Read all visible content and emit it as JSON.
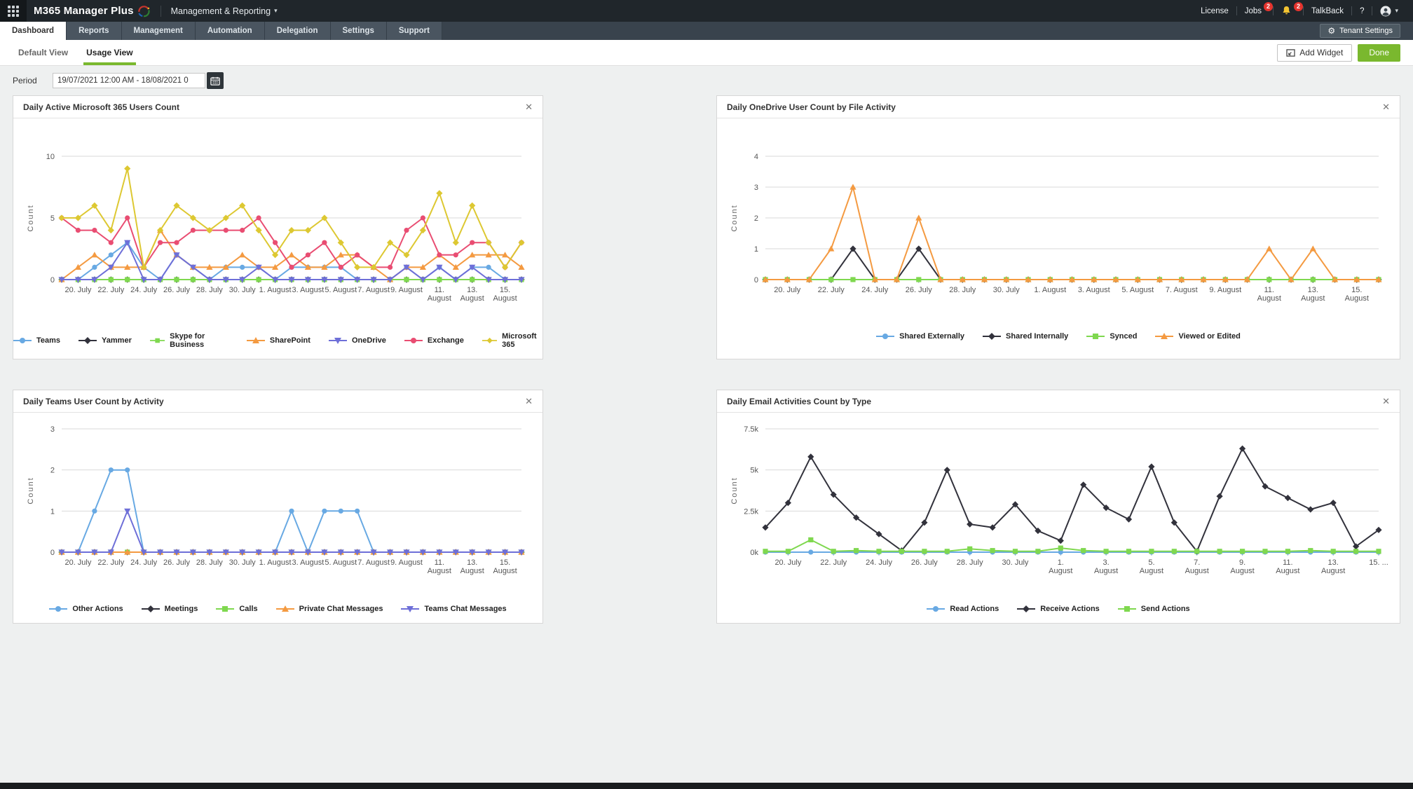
{
  "topbar": {
    "app_name": "M365 Manager Plus",
    "context_menu": "Management & Reporting",
    "license": "License",
    "jobs": "Jobs",
    "jobs_badge": "2",
    "bell_badge": "2",
    "talkback": "TalkBack",
    "help": "?"
  },
  "tabs": {
    "items": [
      {
        "label": "Dashboard",
        "active": true
      },
      {
        "label": "Reports",
        "active": false
      },
      {
        "label": "Management",
        "active": false
      },
      {
        "label": "Automation",
        "active": false
      },
      {
        "label": "Delegation",
        "active": false
      },
      {
        "label": "Settings",
        "active": false
      },
      {
        "label": "Support",
        "active": false
      }
    ],
    "tenant_settings": "Tenant Settings"
  },
  "subtabs": {
    "items": [
      {
        "label": "Default View",
        "active": false
      },
      {
        "label": "Usage View",
        "active": true
      }
    ],
    "add_widget": "Add Widget",
    "done": "Done"
  },
  "period": {
    "label": "Period",
    "value": "19/07/2021 12:00 AM - 18/08/2021 0"
  },
  "colors": {
    "accent_green": "#7ab82e",
    "badge_red": "#e5342e",
    "topbar_bg": "#20262b",
    "tabbar_bg": "#39434d"
  },
  "chart_data": [
    {
      "type": "line",
      "title": "Daily Active Microsoft 365 Users Count",
      "ylabel": "Count",
      "ylim": [
        0,
        10
      ],
      "grid": true,
      "legend_position": "bottom",
      "yticks": [
        {
          "v": 0,
          "label": "0"
        },
        {
          "v": 5,
          "label": "5"
        },
        {
          "v": 10,
          "label": "10"
        }
      ],
      "x": [
        "19. July",
        "20. July",
        "21. July",
        "22. July",
        "23. July",
        "24. July",
        "25. July",
        "26. July",
        "27. July",
        "28. July",
        "29. July",
        "30. July",
        "31. July",
        "1. August",
        "2. August",
        "3. August",
        "4. August",
        "5. August",
        "6. August",
        "7. August",
        "8. August",
        "9. August",
        "10. August",
        "11. August",
        "12. August",
        "13. August",
        "14. August",
        "15. August",
        "16. August"
      ],
      "x_tick_labels": [
        "20. July",
        "22. July",
        "24. July",
        "26. July",
        "28. July",
        "30. July",
        "1. August",
        "3. August",
        "5. August",
        "7. August",
        "9. August",
        "11.\nAugust",
        "13.\nAugust",
        "15.\nAugust"
      ],
      "series": [
        {
          "name": "Teams",
          "color": "#68a9e3",
          "marker": "circle",
          "values": [
            0,
            0,
            1,
            2,
            3,
            1,
            0,
            2,
            1,
            0,
            1,
            1,
            1,
            0,
            1,
            1,
            1,
            1,
            0,
            0,
            0,
            1,
            0,
            1,
            0,
            1,
            1,
            0,
            0
          ]
        },
        {
          "name": "Yammer",
          "color": "#32323c",
          "marker": "diamond",
          "values": [
            0,
            0,
            0,
            0,
            0,
            0,
            0,
            0,
            0,
            0,
            0,
            0,
            0,
            0,
            0,
            0,
            0,
            0,
            0,
            0,
            0,
            0,
            0,
            0,
            0,
            0,
            0,
            0,
            0
          ]
        },
        {
          "name": "Skype for Business",
          "color": "#7fd84f",
          "marker": "square",
          "values": [
            0,
            0,
            0,
            0,
            0,
            0,
            0,
            0,
            0,
            0,
            0,
            0,
            0,
            0,
            0,
            0,
            0,
            0,
            0,
            0,
            0,
            0,
            0,
            0,
            0,
            0,
            0,
            0,
            0
          ]
        },
        {
          "name": "SharePoint",
          "color": "#f49a41",
          "marker": "triangle-up",
          "values": [
            0,
            1,
            2,
            1,
            1,
            1,
            4,
            2,
            1,
            1,
            1,
            2,
            1,
            1,
            2,
            1,
            1,
            2,
            2,
            1,
            0,
            1,
            1,
            2,
            1,
            2,
            2,
            2,
            1
          ]
        },
        {
          "name": "OneDrive",
          "color": "#6e6fd8",
          "marker": "triangle-down",
          "values": [
            0,
            0,
            0,
            1,
            3,
            0,
            0,
            2,
            1,
            0,
            0,
            0,
            1,
            0,
            0,
            0,
            0,
            0,
            0,
            0,
            0,
            1,
            0,
            1,
            0,
            1,
            0,
            0,
            0
          ]
        },
        {
          "name": "Exchange",
          "color": "#e94d72",
          "marker": "circle",
          "values": [
            5,
            4,
            4,
            3,
            5,
            1,
            3,
            3,
            4,
            4,
            4,
            4,
            5,
            3,
            1,
            2,
            3,
            1,
            2,
            1,
            1,
            4,
            5,
            2,
            2,
            3,
            3,
            1,
            3
          ]
        },
        {
          "name": "Microsoft 365",
          "color": "#ddc832",
          "marker": "diamond",
          "values": [
            5,
            5,
            6,
            4,
            9,
            1,
            4,
            6,
            5,
            4,
            5,
            6,
            4,
            2,
            4,
            4,
            5,
            3,
            1,
            1,
            3,
            2,
            4,
            7,
            3,
            6,
            3,
            1,
            3
          ]
        }
      ]
    },
    {
      "type": "line",
      "title": "Daily OneDrive User Count by File Activity",
      "ylabel": "Count",
      "ylim": [
        0,
        4
      ],
      "grid": true,
      "legend_position": "bottom",
      "yticks": [
        {
          "v": 0,
          "label": "0"
        },
        {
          "v": 1,
          "label": "1"
        },
        {
          "v": 2,
          "label": "2"
        },
        {
          "v": 3,
          "label": "3"
        },
        {
          "v": 4,
          "label": "4"
        }
      ],
      "x": [
        "19. July",
        "20. July",
        "21. July",
        "22. July",
        "23. July",
        "24. July",
        "25. July",
        "26. July",
        "27. July",
        "28. July",
        "29. July",
        "30. July",
        "31. July",
        "1. August",
        "2. August",
        "3. August",
        "4. August",
        "5. August",
        "6. August",
        "7. August",
        "8. August",
        "9. August",
        "10. August",
        "11. August",
        "12. August",
        "13. August",
        "14. August",
        "15. August",
        "16. August"
      ],
      "x_tick_labels": [
        "20. July",
        "22. July",
        "24. July",
        "26. July",
        "28. July",
        "30. July",
        "1. August",
        "3. August",
        "5. August",
        "7. August",
        "9. August",
        "11.\nAugust",
        "13.\nAugust",
        "15.\nAugust"
      ],
      "series": [
        {
          "name": "Shared Externally",
          "color": "#68a9e3",
          "marker": "circle",
          "values": [
            0,
            0,
            0,
            0,
            0,
            0,
            0,
            0,
            0,
            0,
            0,
            0,
            0,
            0,
            0,
            0,
            0,
            0,
            0,
            0,
            0,
            0,
            0,
            0,
            0,
            0,
            0,
            0,
            0
          ]
        },
        {
          "name": "Shared Internally",
          "color": "#32323c",
          "marker": "diamond",
          "values": [
            0,
            0,
            0,
            0,
            1,
            0,
            0,
            1,
            0,
            0,
            0,
            0,
            0,
            0,
            0,
            0,
            0,
            0,
            0,
            0,
            0,
            0,
            0,
            0,
            0,
            0,
            0,
            0,
            0
          ]
        },
        {
          "name": "Synced",
          "color": "#7fd84f",
          "marker": "square",
          "values": [
            0,
            0,
            0,
            0,
            0,
            0,
            0,
            0,
            0,
            0,
            0,
            0,
            0,
            0,
            0,
            0,
            0,
            0,
            0,
            0,
            0,
            0,
            0,
            0,
            0,
            0,
            0,
            0,
            0
          ]
        },
        {
          "name": "Viewed or Edited",
          "color": "#f49a41",
          "marker": "triangle-up",
          "values": [
            0,
            0,
            0,
            1,
            3,
            0,
            0,
            2,
            0,
            0,
            0,
            0,
            0,
            0,
            0,
            0,
            0,
            0,
            0,
            0,
            0,
            0,
            0,
            1,
            0,
            1,
            0,
            0,
            0
          ]
        }
      ]
    },
    {
      "type": "line",
      "title": "Daily Teams User Count by Activity",
      "ylabel": "Count",
      "ylim": [
        0,
        3
      ],
      "grid": true,
      "legend_position": "bottom",
      "yticks": [
        {
          "v": 0,
          "label": "0"
        },
        {
          "v": 1,
          "label": "1"
        },
        {
          "v": 2,
          "label": "2"
        },
        {
          "v": 3,
          "label": "3"
        }
      ],
      "x": [
        "19. July",
        "20. July",
        "21. July",
        "22. July",
        "23. July",
        "24. July",
        "25. July",
        "26. July",
        "27. July",
        "28. July",
        "29. July",
        "30. July",
        "31. July",
        "1. August",
        "2. August",
        "3. August",
        "4. August",
        "5. August",
        "6. August",
        "7. August",
        "8. August",
        "9. August",
        "10. August",
        "11. August",
        "12. August",
        "13. August",
        "14. August",
        "15. August",
        "16. August"
      ],
      "x_tick_labels": [
        "20. July",
        "22. July",
        "24. July",
        "26. July",
        "28. July",
        "30. July",
        "1. August",
        "3. August",
        "5. August",
        "7. August",
        "9. August",
        "11.\nAugust",
        "13.\nAugust",
        "15.\nAugust"
      ],
      "series": [
        {
          "name": "Other Actions",
          "color": "#68a9e3",
          "marker": "circle",
          "values": [
            0,
            0,
            1,
            2,
            2,
            0,
            0,
            0,
            0,
            0,
            0,
            0,
            0,
            0,
            1,
            0,
            1,
            1,
            1,
            0,
            0,
            0,
            0,
            0,
            0,
            0,
            0,
            0,
            0
          ]
        },
        {
          "name": "Meetings",
          "color": "#32323c",
          "marker": "diamond",
          "values": [
            0,
            0,
            0,
            0,
            0,
            0,
            0,
            0,
            0,
            0,
            0,
            0,
            0,
            0,
            0,
            0,
            0,
            0,
            0,
            0,
            0,
            0,
            0,
            0,
            0,
            0,
            0,
            0,
            0
          ]
        },
        {
          "name": "Calls",
          "color": "#7fd84f",
          "marker": "square",
          "values": [
            0,
            0,
            0,
            0,
            0,
            0,
            0,
            0,
            0,
            0,
            0,
            0,
            0,
            0,
            0,
            0,
            0,
            0,
            0,
            0,
            0,
            0,
            0,
            0,
            0,
            0,
            0,
            0,
            0
          ]
        },
        {
          "name": "Private Chat Messages",
          "color": "#f49a41",
          "marker": "triangle-up",
          "values": [
            0,
            0,
            0,
            0,
            0,
            0,
            0,
            0,
            0,
            0,
            0,
            0,
            0,
            0,
            0,
            0,
            0,
            0,
            0,
            0,
            0,
            0,
            0,
            0,
            0,
            0,
            0,
            0,
            0
          ]
        },
        {
          "name": "Teams Chat Messages",
          "color": "#6e6fd8",
          "marker": "triangle-down",
          "values": [
            0,
            0,
            0,
            0,
            1,
            0,
            0,
            0,
            0,
            0,
            0,
            0,
            0,
            0,
            0,
            0,
            0,
            0,
            0,
            0,
            0,
            0,
            0,
            0,
            0,
            0,
            0,
            0,
            0
          ]
        }
      ]
    },
    {
      "type": "line",
      "title": "Daily Email Activities Count by Type",
      "ylabel": "Count",
      "ylim": [
        0,
        7.5
      ],
      "grid": true,
      "legend_position": "bottom",
      "yticks": [
        {
          "v": 0,
          "label": "0k"
        },
        {
          "v": 2.5,
          "label": "2.5k"
        },
        {
          "v": 5,
          "label": "5k"
        },
        {
          "v": 7.5,
          "label": "7.5k"
        }
      ],
      "x": [
        "19. July",
        "20. July",
        "21. July",
        "22. July",
        "23. July",
        "24. July",
        "25. July",
        "26. July",
        "27. July",
        "28. July",
        "29. July",
        "30. July",
        "31. July",
        "1. August",
        "2. August",
        "3. August",
        "4. August",
        "5. August",
        "6. August",
        "7. August",
        "8. August",
        "9. August",
        "10. August",
        "11. August",
        "12. August",
        "13. August",
        "14. August",
        "15. August"
      ],
      "x_tick_labels": [
        "20. July",
        "22. July",
        "24. July",
        "26. July",
        "28. July",
        "30. July",
        "1.\nAugust",
        "3.\nAugust",
        "5.\nAugust",
        "7.\nAugust",
        "9.\nAugust",
        "11.\nAugust",
        "13.\nAugust",
        "15. ..."
      ],
      "series": [
        {
          "name": "Read Actions",
          "color": "#68a9e3",
          "marker": "circle",
          "values": [
            0,
            0,
            0,
            0,
            0,
            0,
            0,
            0,
            0,
            0,
            0,
            0,
            0,
            0,
            0,
            0,
            0,
            0,
            0,
            0,
            0,
            0,
            0,
            0,
            0,
            0,
            0,
            0
          ]
        },
        {
          "name": "Receive Actions",
          "color": "#32323c",
          "marker": "diamond",
          "values": [
            1.5,
            3,
            5.8,
            3.5,
            2.1,
            1.1,
            0.1,
            1.8,
            5,
            1.7,
            1.5,
            2.9,
            1.3,
            0.7,
            4.1,
            2.7,
            2,
            5.2,
            1.8,
            0.05,
            3.4,
            6.3,
            4,
            3.3,
            2.6,
            3,
            0.35,
            1.35
          ]
        },
        {
          "name": "Send Actions",
          "color": "#7fd84f",
          "marker": "square",
          "values": [
            0.05,
            0.05,
            0.75,
            0.05,
            0.1,
            0.05,
            0.05,
            0.05,
            0.05,
            0.2,
            0.1,
            0.05,
            0.05,
            0.25,
            0.1,
            0.05,
            0.05,
            0.05,
            0.05,
            0.05,
            0.05,
            0.05,
            0.05,
            0.05,
            0.1,
            0.05,
            0.05,
            0.05
          ]
        }
      ]
    }
  ]
}
